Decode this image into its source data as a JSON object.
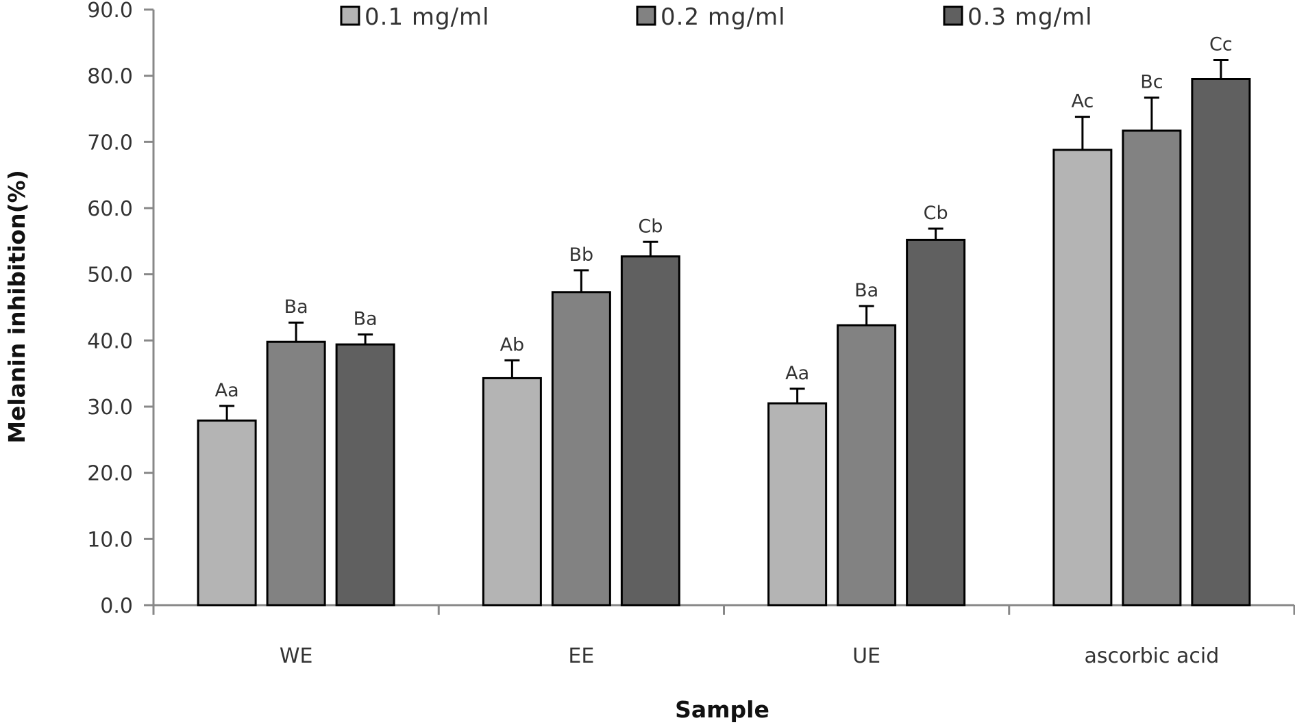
{
  "chart_data": {
    "type": "bar",
    "title": "",
    "xlabel": "Sample",
    "ylabel": "Melanin inhibition(%)",
    "ylim": [
      0,
      90
    ],
    "yticks": [
      "0.0",
      "10.0",
      "20.0",
      "30.0",
      "40.0",
      "50.0",
      "60.0",
      "70.0",
      "80.0",
      "90.0"
    ],
    "categories": [
      "WE",
      "EE",
      "UE",
      "ascorbic acid"
    ],
    "legend_position": "top",
    "grid": false,
    "series": [
      {
        "name": "0.1 mg/ml",
        "color": "#b4b4b4",
        "values": [
          27.9,
          34.3,
          30.5,
          68.8
        ],
        "errors": [
          2.2,
          2.7,
          2.2,
          5.0
        ],
        "labels": [
          "Aa",
          "Ab",
          "Aa",
          "Ac"
        ]
      },
      {
        "name": "0.2 mg/ml",
        "color": "#828282",
        "values": [
          39.8,
          47.3,
          42.3,
          71.7
        ],
        "errors": [
          2.9,
          3.3,
          2.9,
          5.0
        ],
        "labels": [
          "Ba",
          "Bb",
          "Ba",
          "Bc"
        ]
      },
      {
        "name": "0.3 mg/ml",
        "color": "#606060",
        "values": [
          39.4,
          52.7,
          55.2,
          79.5
        ],
        "errors": [
          1.5,
          2.2,
          1.7,
          2.9
        ],
        "labels": [
          "Ba",
          "Cb",
          "Cb",
          "Cc"
        ]
      }
    ]
  }
}
